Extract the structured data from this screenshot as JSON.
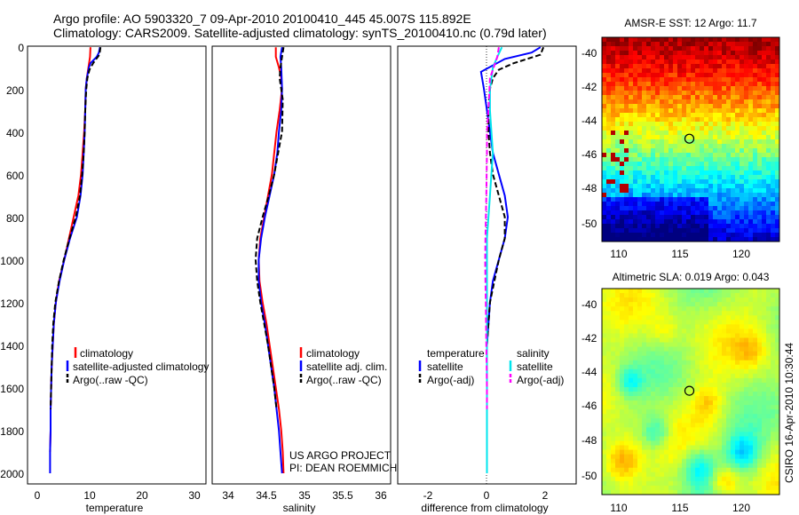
{
  "header": {
    "line1": "Argo profile: AO 5903320_7 09-Apr-2010 20100410_445 45.007S 115.892E",
    "line2": "Climatology: CARS2009. Satellite-adjusted climatology: synTS_20100410.nc (0.79d later)"
  },
  "colors": {
    "climatology": "#ff0000",
    "satellite": "#0000ff",
    "argo": "#000000",
    "sal_satellite": "#00e5ee",
    "sal_argo": "#ff00ff"
  },
  "depth_ticks": [
    "0",
    "200",
    "400",
    "600",
    "800",
    "1000",
    "1200",
    "1400",
    "1600",
    "1800",
    "2000"
  ],
  "panels": {
    "temperature": {
      "xlabel": "temperature",
      "xticks": [
        "0",
        "10",
        "20",
        "30"
      ],
      "legend": [
        "climatology",
        "satellite-adjusted climatology",
        "Argo(..raw -QC)"
      ]
    },
    "salinity": {
      "xlabel": "salinity",
      "xticks": [
        "34",
        "34.5",
        "35",
        "35.5",
        "36"
      ],
      "legend": [
        "climatology",
        "satellite adj. clim.",
        "Argo(..raw -QC)"
      ],
      "credit1": "US ARGO PROJECT",
      "credit2": "PI: DEAN ROEMMICH"
    },
    "difference": {
      "xlabel": "difference from climatology",
      "xticks": [
        "-2",
        "0",
        "2"
      ],
      "legend_temp_header": "temperature",
      "legend_sal_header": "salinity",
      "legend_temp": [
        "satellite",
        "Argo(-adj)"
      ],
      "legend_sal": [
        "satellite",
        "Argo(-adj)"
      ]
    },
    "sst_map": {
      "title": "AMSR-E SST: 12 Argo: 11.7",
      "xticks": [
        "110",
        "115",
        "120"
      ],
      "yticks": [
        "-40",
        "-42",
        "-44",
        "-46",
        "-48",
        "-50"
      ]
    },
    "sla_map": {
      "title": "Altimetric SLA: 0.019 Argo: 0.043",
      "xticks": [
        "110",
        "115",
        "120"
      ],
      "yticks": [
        "-40",
        "-42",
        "-44",
        "-46",
        "-48",
        "-50"
      ]
    }
  },
  "side_label": "CSIRO 16-Apr-2010 10:30:44",
  "chart_data": [
    {
      "type": "line",
      "xlabel": "temperature",
      "ylabel": "",
      "xlim": [
        -2,
        32
      ],
      "ylim": [
        2050,
        0
      ],
      "series": [
        {
          "name": "climatology",
          "color": "#ff0000",
          "dash": "solid",
          "points": [
            [
              10.0,
              5
            ],
            [
              9.9,
              50
            ],
            [
              9.6,
              100
            ],
            [
              9.3,
              150
            ],
            [
              9.1,
              200
            ],
            [
              9.0,
              300
            ],
            [
              8.8,
              400
            ],
            [
              8.5,
              500
            ],
            [
              8.2,
              600
            ],
            [
              7.7,
              700
            ],
            [
              6.8,
              800
            ],
            [
              5.9,
              900
            ],
            [
              5.0,
              1000
            ],
            [
              4.0,
              1100
            ],
            [
              3.4,
              1200
            ],
            [
              3.0,
              1300
            ],
            [
              2.8,
              1400
            ],
            [
              2.6,
              1500
            ],
            [
              2.5,
              1600
            ],
            [
              2.4,
              1700
            ],
            [
              2.4,
              1800
            ],
            [
              2.3,
              1900
            ]
          ]
        },
        {
          "name": "satellite-adjusted climatology",
          "color": "#0000ff",
          "dash": "solid",
          "points": [
            [
              11.8,
              5
            ],
            [
              11.6,
              30
            ],
            [
              11.2,
              50
            ],
            [
              10.0,
              80
            ],
            [
              9.7,
              100
            ],
            [
              9.3,
              150
            ],
            [
              9.1,
              200
            ],
            [
              9.0,
              300
            ],
            [
              8.9,
              400
            ],
            [
              8.7,
              500
            ],
            [
              8.5,
              600
            ],
            [
              8.1,
              700
            ],
            [
              7.4,
              800
            ],
            [
              6.1,
              900
            ],
            [
              5.0,
              1000
            ],
            [
              4.1,
              1100
            ],
            [
              3.4,
              1200
            ],
            [
              3.0,
              1300
            ],
            [
              2.8,
              1400
            ],
            [
              2.6,
              1500
            ],
            [
              2.5,
              1600
            ],
            [
              2.4,
              1700
            ],
            [
              2.4,
              1800
            ],
            [
              2.3,
              1900
            ],
            [
              2.3,
              2000
            ]
          ]
        },
        {
          "name": "Argo(..raw -QC)",
          "color": "#000000",
          "dash": "dashed",
          "points": [
            [
              11.9,
              5
            ],
            [
              11.7,
              40
            ],
            [
              10.5,
              80
            ],
            [
              9.8,
              110
            ],
            [
              9.4,
              150
            ],
            [
              9.2,
              200
            ],
            [
              9.0,
              300
            ],
            [
              8.9,
              400
            ],
            [
              8.7,
              500
            ],
            [
              8.4,
              600
            ],
            [
              8.0,
              700
            ],
            [
              7.2,
              800
            ],
            [
              6.0,
              900
            ],
            [
              4.9,
              1000
            ],
            [
              4.0,
              1100
            ],
            [
              3.3,
              1200
            ],
            [
              2.9,
              1300
            ],
            [
              2.7,
              1400
            ],
            [
              2.6,
              1500
            ],
            [
              2.5,
              1600
            ],
            [
              2.4,
              1700
            ]
          ]
        }
      ]
    },
    {
      "type": "line",
      "xlabel": "salinity",
      "ylabel": "",
      "xlim": [
        33.8,
        36.1
      ],
      "ylim": [
        2050,
        0
      ],
      "series": [
        {
          "name": "climatology",
          "color": "#ff0000",
          "dash": "solid",
          "points": [
            [
              34.62,
              5
            ],
            [
              34.62,
              50
            ],
            [
              34.66,
              100
            ],
            [
              34.69,
              150
            ],
            [
              34.7,
              200
            ],
            [
              34.67,
              300
            ],
            [
              34.63,
              400
            ],
            [
              34.6,
              500
            ],
            [
              34.57,
              600
            ],
            [
              34.52,
              700
            ],
            [
              34.47,
              800
            ],
            [
              34.42,
              900
            ],
            [
              34.4,
              1000
            ],
            [
              34.41,
              1100
            ],
            [
              34.45,
              1200
            ],
            [
              34.5,
              1300
            ],
            [
              34.54,
              1400
            ],
            [
              34.58,
              1500
            ],
            [
              34.62,
              1600
            ],
            [
              34.66,
              1700
            ],
            [
              34.69,
              1800
            ],
            [
              34.71,
              1900
            ],
            [
              34.72,
              2000
            ]
          ]
        },
        {
          "name": "satellite adj. clim.",
          "color": "#0000ff",
          "dash": "solid",
          "points": [
            [
              34.7,
              5
            ],
            [
              34.68,
              50
            ],
            [
              34.69,
              100
            ],
            [
              34.7,
              200
            ],
            [
              34.69,
              300
            ],
            [
              34.66,
              400
            ],
            [
              34.64,
              500
            ],
            [
              34.6,
              600
            ],
            [
              34.54,
              700
            ],
            [
              34.48,
              800
            ],
            [
              34.43,
              900
            ],
            [
              34.4,
              1000
            ],
            [
              34.4,
              1100
            ],
            [
              34.43,
              1200
            ],
            [
              34.48,
              1300
            ],
            [
              34.52,
              1400
            ],
            [
              34.56,
              1500
            ],
            [
              34.6,
              1600
            ],
            [
              34.63,
              1700
            ],
            [
              34.66,
              1800
            ],
            [
              34.68,
              1900
            ],
            [
              34.7,
              2000
            ]
          ]
        },
        {
          "name": "Argo(..raw -QC)",
          "color": "#000000",
          "dash": "dashed",
          "points": [
            [
              34.72,
              5
            ],
            [
              34.7,
              50
            ],
            [
              34.68,
              100
            ],
            [
              34.67,
              150
            ],
            [
              34.71,
              250
            ],
            [
              34.7,
              400
            ],
            [
              34.65,
              500
            ],
            [
              34.6,
              600
            ],
            [
              34.53,
              700
            ],
            [
              34.45,
              800
            ],
            [
              34.38,
              900
            ],
            [
              34.36,
              1000
            ],
            [
              34.38,
              1100
            ],
            [
              34.42,
              1200
            ],
            [
              34.47,
              1300
            ],
            [
              34.52,
              1400
            ],
            [
              34.56,
              1500
            ],
            [
              34.6,
              1600
            ],
            [
              34.63,
              1700
            ]
          ]
        }
      ]
    },
    {
      "type": "line",
      "xlabel": "difference from climatology",
      "ylabel": "",
      "xlim": [
        -3,
        3
      ],
      "ylim": [
        2050,
        0
      ],
      "series": [
        {
          "name": "temperature satellite",
          "color": "#0000ff",
          "dash": "solid",
          "points": [
            [
              1.8,
              5
            ],
            [
              1.5,
              30
            ],
            [
              0.6,
              60
            ],
            [
              -0.2,
              120
            ],
            [
              -0.1,
              200
            ],
            [
              0.0,
              300
            ],
            [
              0.1,
              400
            ],
            [
              0.2,
              500
            ],
            [
              0.4,
              600
            ],
            [
              0.6,
              700
            ],
            [
              0.7,
              800
            ],
            [
              0.6,
              900
            ],
            [
              0.4,
              1000
            ],
            [
              0.2,
              1100
            ],
            [
              0.1,
              1200
            ],
            [
              0.05,
              1300
            ],
            [
              0.0,
              1400
            ],
            [
              0.0,
              1600
            ],
            [
              0.0,
              1800
            ],
            [
              0.0,
              2000
            ]
          ]
        },
        {
          "name": "temperature Argo(-adj)",
          "color": "#000000",
          "dash": "dashed",
          "points": [
            [
              1.9,
              5
            ],
            [
              1.8,
              40
            ],
            [
              0.9,
              80
            ],
            [
              0.4,
              110
            ],
            [
              0.2,
              150
            ],
            [
              0.1,
              200
            ],
            [
              0.05,
              300
            ],
            [
              0.05,
              400
            ],
            [
              0.1,
              500
            ],
            [
              0.2,
              600
            ],
            [
              0.4,
              700
            ],
            [
              0.6,
              800
            ],
            [
              0.6,
              900
            ],
            [
              0.4,
              1000
            ],
            [
              0.25,
              1100
            ],
            [
              0.1,
              1200
            ],
            [
              0.05,
              1300
            ],
            [
              0.0,
              1400
            ],
            [
              0.0,
              1600
            ],
            [
              0.0,
              1700
            ]
          ]
        },
        {
          "name": "salinity satellite",
          "color": "#00e5ee",
          "dash": "solid",
          "points": [
            [
              0.5,
              5
            ],
            [
              0.35,
              50
            ],
            [
              0.2,
              100
            ],
            [
              0.1,
              200
            ],
            [
              0.1,
              300
            ],
            [
              0.15,
              400
            ],
            [
              0.2,
              500
            ],
            [
              0.15,
              600
            ],
            [
              0.1,
              700
            ],
            [
              0.05,
              800
            ],
            [
              0.0,
              900
            ],
            [
              0.0,
              1000
            ],
            [
              0.0,
              1200
            ],
            [
              0.0,
              1400
            ],
            [
              0.0,
              1600
            ],
            [
              0.0,
              1800
            ],
            [
              0.0,
              2000
            ]
          ]
        },
        {
          "name": "salinity Argo(-adj)",
          "color": "#ff00ff",
          "dash": "dashed",
          "points": [
            [
              0.4,
              5
            ],
            [
              0.35,
              50
            ],
            [
              0.1,
              150
            ],
            [
              0.05,
              300
            ],
            [
              0.0,
              400
            ],
            [
              0.0,
              500
            ],
            [
              -0.02,
              700
            ],
            [
              -0.05,
              900
            ],
            [
              -0.06,
              1000
            ],
            [
              -0.05,
              1100
            ],
            [
              -0.04,
              1200
            ],
            [
              -0.03,
              1300
            ],
            [
              -0.02,
              1400
            ],
            [
              -0.01,
              1500
            ],
            [
              0.0,
              1600
            ],
            [
              0.0,
              1700
            ]
          ]
        }
      ]
    },
    {
      "type": "heatmap",
      "title": "AMSR-E SST: 12 Argo: 11.7",
      "xlim": [
        108.8,
        123.2
      ],
      "ylim": [
        -50.9,
        -39.2
      ],
      "marker": {
        "lon": 115.892,
        "lat": -45.007
      }
    },
    {
      "type": "heatmap",
      "title": "Altimetric SLA: 0.019 Argo: 0.043",
      "xlim": [
        108.8,
        123.2
      ],
      "ylim": [
        -50.9,
        -39.2
      ],
      "marker": {
        "lon": 115.892,
        "lat": -45.007
      }
    }
  ]
}
